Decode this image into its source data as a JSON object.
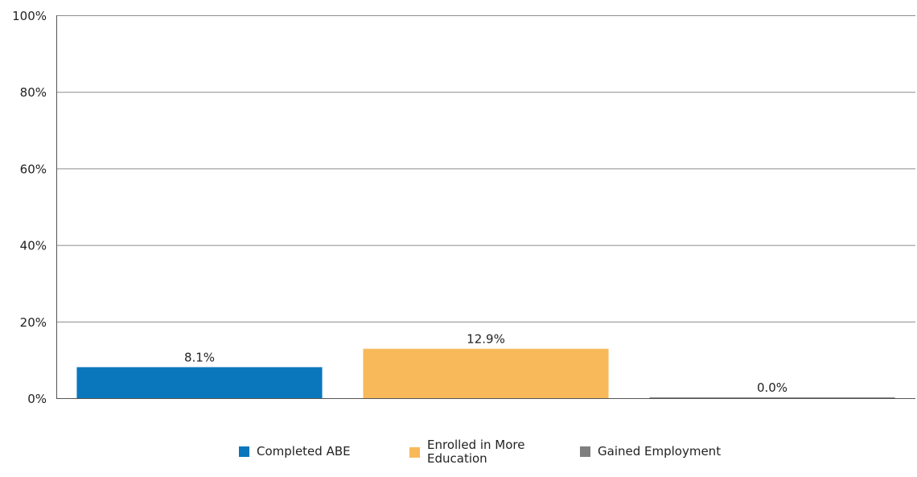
{
  "chart_data": {
    "type": "bar",
    "categories": [
      "Completed ABE",
      "Enrolled in More Education",
      "Gained Employment"
    ],
    "values": [
      8.1,
      12.9,
      0.0
    ],
    "value_labels": [
      "8.1%",
      "12.9%",
      "0.0%"
    ],
    "colors": [
      "#0a77bd",
      "#f8b95a",
      "#7f7f7f"
    ],
    "ylim": [
      0,
      100
    ],
    "yticks": [
      0,
      20,
      40,
      60,
      80,
      100
    ],
    "ytick_labels": [
      "0%",
      "20%",
      "40%",
      "60%",
      "80%",
      "100%"
    ],
    "grid": true,
    "legend_position": "bottom",
    "legend": [
      {
        "label": "Completed ABE",
        "lines": [
          "Completed ABE"
        ]
      },
      {
        "label": "Enrolled in More Education",
        "lines": [
          "Enrolled in More",
          "Education"
        ]
      },
      {
        "label": "Gained Employment",
        "lines": [
          "Gained Employment"
        ]
      }
    ]
  }
}
